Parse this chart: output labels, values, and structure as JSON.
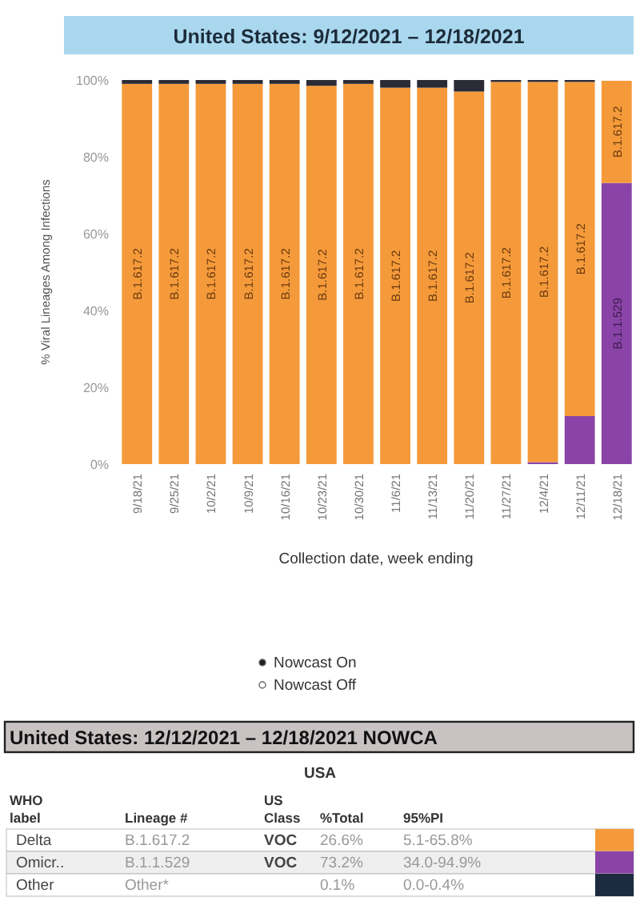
{
  "chart_data": [
    {
      "type": "bar",
      "stacked": true,
      "title": "United States: 9/12/2021 – 12/18/2021",
      "xlabel": "Collection date, week ending",
      "ylabel": "% Viral Lineages Among Infections",
      "categories": [
        "9/18/21",
        "9/25/21",
        "10/2/21",
        "10/9/21",
        "10/16/21",
        "10/23/21",
        "10/30/21",
        "11/6/21",
        "11/13/21",
        "11/20/21",
        "11/27/21",
        "12/4/21",
        "12/11/21",
        "12/18/21"
      ],
      "series": [
        {
          "color": "#8a44a8",
          "values": [
            0,
            0,
            0,
            0,
            0,
            0,
            0,
            0,
            0,
            0,
            0,
            0.5,
            12.5,
            73.2
          ],
          "value_labels": [
            null,
            null,
            null,
            null,
            null,
            null,
            null,
            null,
            null,
            null,
            null,
            null,
            null,
            "B.1.1.529"
          ]
        },
        {
          "color": "#f59a3a",
          "values": [
            99,
            99,
            99,
            99,
            99,
            98.5,
            99,
            98,
            98,
            97,
            99.5,
            99,
            87,
            26.6
          ],
          "value_labels": [
            "B.1.617.2",
            "B.1.617.2",
            "B.1.617.2",
            "B.1.617.2",
            "B.1.617.2",
            "B.1.617.2",
            "B.1.617.2",
            "B.1.617.2",
            "B.1.617.2",
            "B.1.617.2",
            "B.1.617.2",
            "B.1.617.2",
            "B.1.617.2",
            "B.1.617.2"
          ]
        },
        {
          "color": "#2b2b35",
          "values": [
            1,
            1,
            1,
            1,
            1,
            1.5,
            1,
            2,
            2,
            3,
            0.5,
            0.5,
            0.5,
            null
          ]
        }
      ],
      "ylim": [
        0,
        100
      ],
      "yticks": [
        {
          "value": 0,
          "label": "0%"
        },
        {
          "value": 20,
          "label": "20%"
        },
        {
          "value": 40,
          "label": "40%"
        },
        {
          "value": 60,
          "label": "60%"
        },
        {
          "value": 80,
          "label": "80%"
        },
        {
          "value": 100,
          "label": "100%"
        }
      ],
      "grid": false,
      "annotations": [
        "Nowcast On",
        "Nowcast Off"
      ]
    },
    {
      "type": "other",
      "title": "United States: 12/12/2021 – 12/18/2021 NOWCA",
      "subtitle": "USA",
      "categories": [
        "WHO\nlabel",
        "Lineage #",
        "US\nClass",
        "%Total",
        "95%PI"
      ],
      "y_categories": [
        "Delta",
        "Omicr..",
        "Other"
      ],
      "cell_labels": [
        [
          "B.1.617.2",
          "VOC",
          "26.6%",
          "5.1-65.8%"
        ],
        [
          "B.1.1.529",
          "VOC",
          "73.2%",
          "34.0-94.9%"
        ],
        [
          "Other*",
          null,
          "0.1%",
          "0.0-0.4%"
        ]
      ],
      "colors": [
        "#f59a3a",
        "#8a44a8",
        "#1c2b40"
      ]
    }
  ]
}
